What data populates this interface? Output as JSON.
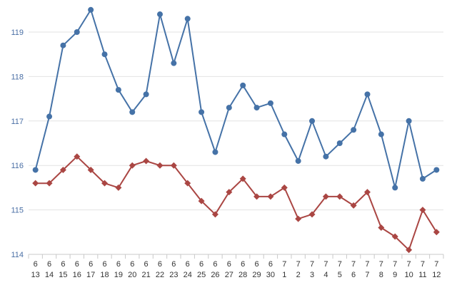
{
  "chart_data": {
    "type": "line",
    "title": "",
    "xlabel": "",
    "ylabel": "",
    "ylim": [
      114,
      119.6
    ],
    "yticks": [
      "114",
      "115",
      "116",
      "117",
      "118",
      "119"
    ],
    "grid": true,
    "legend": "none",
    "categories": [
      [
        "6",
        "13"
      ],
      [
        "6",
        "14"
      ],
      [
        "6",
        "15"
      ],
      [
        "6",
        "16"
      ],
      [
        "6",
        "17"
      ],
      [
        "6",
        "18"
      ],
      [
        "6",
        "19"
      ],
      [
        "6",
        "20"
      ],
      [
        "6",
        "21"
      ],
      [
        "6",
        "22"
      ],
      [
        "6",
        "23"
      ],
      [
        "6",
        "24"
      ],
      [
        "6",
        "25"
      ],
      [
        "6",
        "26"
      ],
      [
        "6",
        "27"
      ],
      [
        "6",
        "28"
      ],
      [
        "6",
        "29"
      ],
      [
        "6",
        "30"
      ],
      [
        "7",
        "1"
      ],
      [
        "7",
        "2"
      ],
      [
        "7",
        "3"
      ],
      [
        "7",
        "4"
      ],
      [
        "7",
        "5"
      ],
      [
        "7",
        "6"
      ],
      [
        "7",
        "7"
      ],
      [
        "7",
        "8"
      ],
      [
        "7",
        "9"
      ],
      [
        "7",
        "10"
      ],
      [
        "7",
        "11"
      ],
      [
        "7",
        "12"
      ]
    ],
    "series": [
      {
        "color": "#4572a7",
        "marker": "circle",
        "values": [
          115.9,
          117.1,
          118.7,
          119.0,
          119.5,
          118.5,
          117.7,
          117.2,
          117.6,
          119.4,
          118.3,
          119.3,
          117.2,
          116.3,
          117.3,
          117.8,
          117.3,
          117.4,
          116.7,
          116.1,
          117.0,
          116.2,
          116.5,
          116.8,
          117.6,
          116.7,
          115.5,
          117.0,
          115.7,
          115.9
        ]
      },
      {
        "color": "#aa4643",
        "marker": "diamond",
        "values": [
          115.6,
          115.6,
          115.9,
          116.2,
          115.9,
          115.6,
          115.5,
          116.0,
          116.1,
          116.0,
          116.0,
          115.6,
          115.2,
          114.9,
          115.4,
          115.7,
          115.3,
          115.3,
          115.5,
          114.8,
          114.9,
          115.3,
          115.3,
          115.1,
          115.4,
          114.6,
          114.4,
          114.1,
          115.0,
          114.5
        ]
      }
    ]
  }
}
